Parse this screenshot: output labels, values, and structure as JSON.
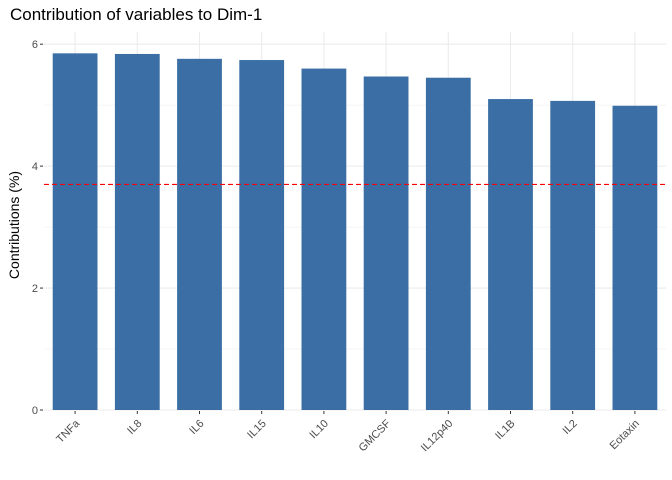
{
  "chart_data": {
    "type": "bar",
    "title": "Contribution of variables to Dim-1",
    "xlabel": "",
    "ylabel": "Contributions (%)",
    "categories": [
      "TNFa",
      "IL8",
      "IL6",
      "IL15",
      "IL10",
      "GMCSF",
      "IL12p40",
      "IL1B",
      "IL2",
      "Eotaxin"
    ],
    "values": [
      5.85,
      5.84,
      5.76,
      5.74,
      5.6,
      5.47,
      5.45,
      5.1,
      5.07,
      4.99
    ],
    "ylim": [
      0,
      6.2
    ],
    "yticks": [
      0,
      2,
      4,
      6
    ],
    "reference_line": {
      "value": 3.7,
      "color": "#ff0000",
      "style": "dashed"
    },
    "bar_color": "#3a6ea5",
    "grid": true,
    "legend": "none"
  }
}
